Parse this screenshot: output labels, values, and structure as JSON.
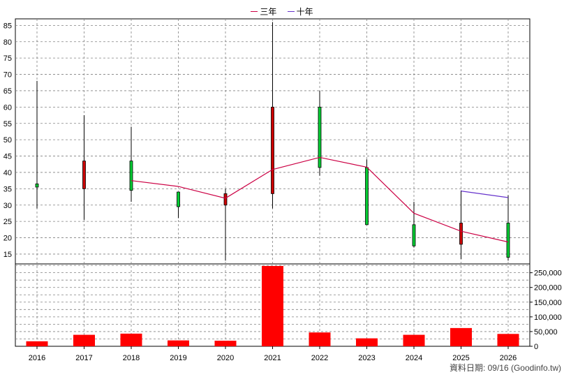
{
  "legend": {
    "three_year": "三年",
    "ten_year": "十年"
  },
  "credit": "資料日期: 09/16  (Goodinfo.tw)",
  "colors": {
    "up": "#00cc33",
    "down": "#cc0000",
    "volume": "#ff0000",
    "three_year_line": "#cc0044",
    "ten_year_line": "#6633cc",
    "grid": "#808080"
  },
  "chart_data": [
    {
      "type": "candlestick",
      "categories": [
        "2016",
        "2017",
        "2018",
        "2019",
        "2020",
        "2021",
        "2022",
        "2023",
        "2024",
        "2025",
        "2026"
      ],
      "ohlc": [
        {
          "open": 35.5,
          "high": 68,
          "low": 29,
          "close": 36.5
        },
        {
          "open": 43.5,
          "high": 57.5,
          "low": 25.5,
          "close": 35
        },
        {
          "open": 34.5,
          "high": 54,
          "low": 31,
          "close": 43.5
        },
        {
          "open": 29.5,
          "high": 34,
          "low": 26,
          "close": 34
        },
        {
          "open": 33.5,
          "high": 35,
          "low": 13,
          "close": 30
        },
        {
          "open": 60,
          "high": 86,
          "low": 29,
          "close": 33.5
        },
        {
          "open": 41.5,
          "high": 65,
          "low": 39,
          "close": 60
        },
        {
          "open": 24,
          "high": 44,
          "low": 24,
          "close": 41.5
        },
        {
          "open": 17.5,
          "high": 31,
          "low": 17,
          "close": 24
        },
        {
          "open": 24.5,
          "high": 34.5,
          "low": 13.5,
          "close": 18
        },
        {
          "open": 14,
          "high": 33,
          "low": 13,
          "close": 24.5
        }
      ],
      "series": [
        {
          "name": "三年",
          "values": [
            null,
            null,
            37.5,
            35.7,
            32.1,
            40.9,
            44.6,
            41.6,
            27.5,
            22,
            18.7
          ]
        },
        {
          "name": "十年",
          "values": [
            null,
            null,
            null,
            null,
            null,
            null,
            null,
            null,
            null,
            34.3,
            32.3
          ]
        }
      ],
      "yticks": [
        15,
        20,
        25,
        30,
        35,
        40,
        45,
        50,
        55,
        60,
        65,
        70,
        75,
        80,
        85
      ],
      "ylim": [
        12,
        87
      ],
      "grid": true,
      "legend_position": "top-center"
    },
    {
      "type": "bar",
      "categories": [
        "2016",
        "2017",
        "2018",
        "2019",
        "2020",
        "2021",
        "2022",
        "2023",
        "2024",
        "2025",
        "2026"
      ],
      "values": [
        17000,
        39000,
        43000,
        20000,
        19000,
        273000,
        47000,
        27000,
        39000,
        62000,
        42000
      ],
      "yticks": [
        0,
        50000,
        100000,
        150000,
        200000,
        250000
      ],
      "yticklabels": [
        "0",
        "50,000",
        "100,000",
        "150,000",
        "200,000",
        "250,000"
      ],
      "ylim": [
        0,
        280000
      ],
      "grid": true
    }
  ]
}
